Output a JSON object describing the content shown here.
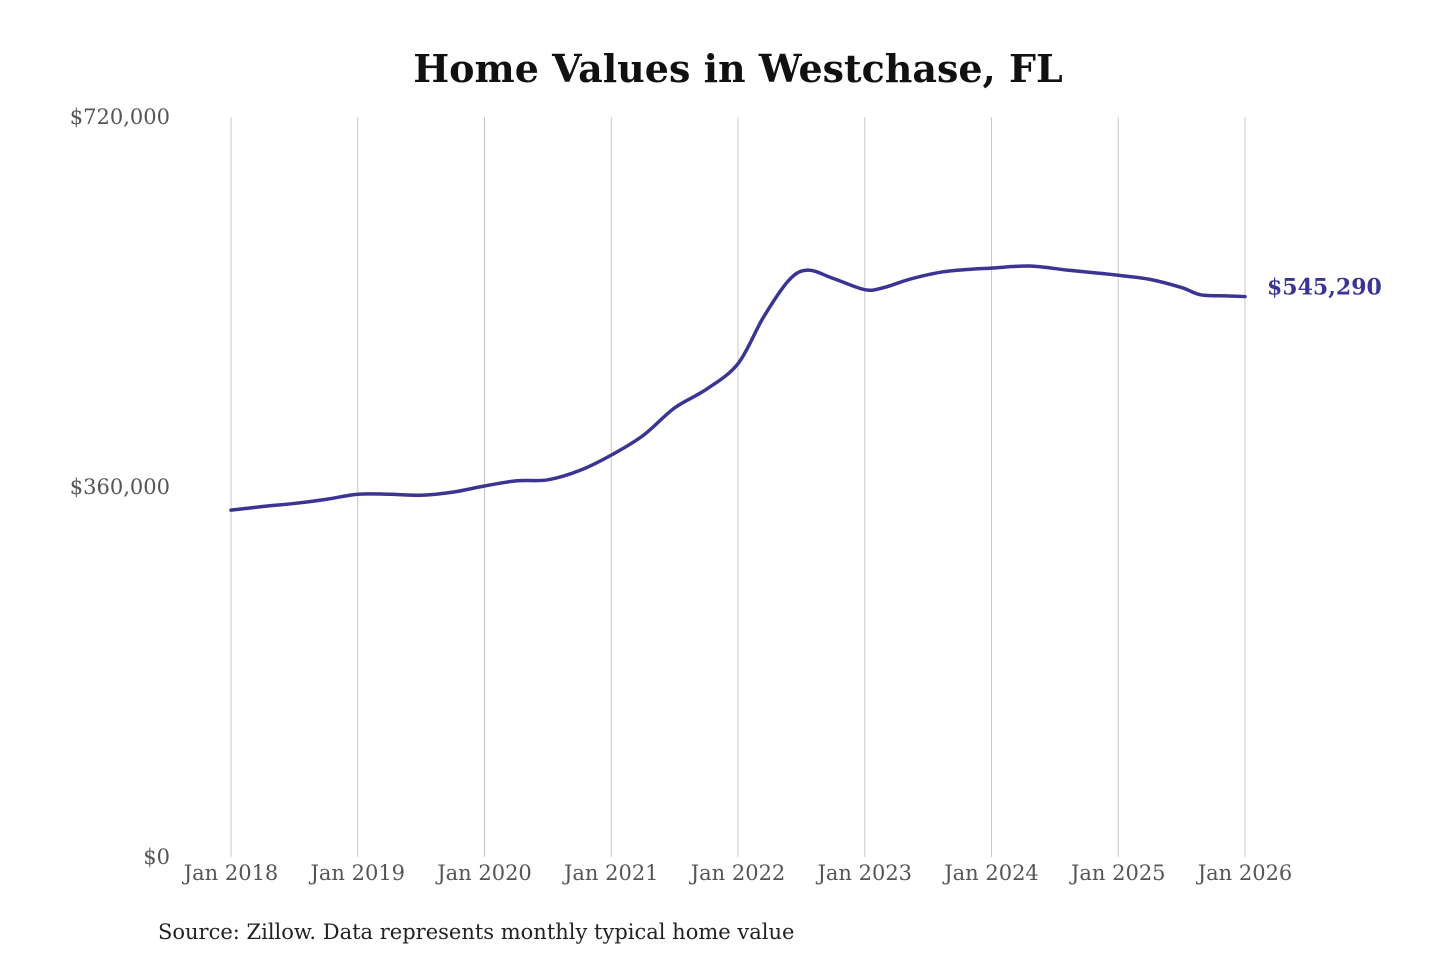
{
  "chart_data": {
    "type": "line",
    "title": "Home Values in Westchase, FL",
    "source": "Source: Zillow. Data represents monthly typical home value",
    "ylim": [
      0,
      720000
    ],
    "y_ticks": [
      {
        "value": 0,
        "label": "$0"
      },
      {
        "value": 360000,
        "label": "$360,000"
      },
      {
        "value": 720000,
        "label": "$720,000"
      }
    ],
    "x_ticks": [
      {
        "value": 2018,
        "label": "Jan 2018"
      },
      {
        "value": 2019,
        "label": "Jan 2019"
      },
      {
        "value": 2020,
        "label": "Jan 2020"
      },
      {
        "value": 2021,
        "label": "Jan 2021"
      },
      {
        "value": 2022,
        "label": "Jan 2022"
      },
      {
        "value": 2023,
        "label": "Jan 2023"
      },
      {
        "value": 2024,
        "label": "Jan 2024"
      },
      {
        "value": 2025,
        "label": "Jan 2025"
      },
      {
        "value": 2026,
        "label": "Jan 2026"
      }
    ],
    "xlim": [
      2018,
      2026
    ],
    "grid": "vertical",
    "line_color": "#3a3592",
    "end_label": "$545,290",
    "series": [
      {
        "x": [
          2018.0,
          2018.25,
          2018.5,
          2018.75,
          2019.0,
          2019.25,
          2019.5,
          2019.75,
          2020.0,
          2020.25,
          2020.5,
          2020.75,
          2021.0,
          2021.25,
          2021.5,
          2021.75,
          2022.0,
          2022.2,
          2022.4,
          2022.55,
          2022.75,
          2023.0,
          2023.15,
          2023.35,
          2023.6,
          2023.85,
          2024.0,
          2024.3,
          2024.6,
          2024.85,
          2025.0,
          2025.25,
          2025.5,
          2025.65,
          2025.85,
          2026.0
        ],
        "y": [
          337500,
          341000,
          344000,
          348000,
          353000,
          353000,
          352000,
          355000,
          361000,
          366000,
          367000,
          376000,
          391000,
          410000,
          437000,
          455000,
          480000,
          525000,
          561000,
          571000,
          563000,
          552000,
          554000,
          562000,
          569000,
          572000,
          573000,
          575000,
          571000,
          568000,
          566000,
          562000,
          554000,
          547000,
          546000,
          545290
        ]
      }
    ]
  }
}
